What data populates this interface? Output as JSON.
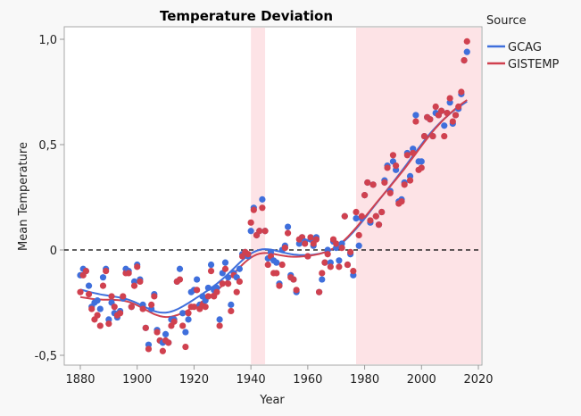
{
  "chart_data": {
    "type": "scatter",
    "title": "Temperature Deviation",
    "xlabel": "Year",
    "ylabel": "Mean Temperature",
    "xlim": [
      1874,
      2021
    ],
    "ylim": [
      -0.55,
      1.07
    ],
    "xticks": [
      1880,
      1900,
      1920,
      1940,
      1960,
      1980,
      2000,
      2020
    ],
    "xtick_labels": [
      "1880",
      "1900",
      "1920",
      "1940",
      "1960",
      "1980",
      "2000",
      "2020"
    ],
    "yticks": [
      -0.5,
      0,
      0.5,
      1.0
    ],
    "ytick_labels": [
      "-0,5",
      "0",
      "0,5",
      "1,0"
    ],
    "reference_line": {
      "y": 0,
      "style": "dashed"
    },
    "shaded_ranges": [
      [
        1940,
        1945
      ],
      [
        1977,
        2021
      ]
    ],
    "shade_color": "#fde3e6",
    "legend": {
      "title": "Source",
      "placement": "right"
    },
    "smoother": true,
    "x_start": 1880,
    "series": [
      {
        "name": "GCAG",
        "color": "#3f6fdc",
        "values": [
          -0.12,
          -0.09,
          -0.1,
          -0.17,
          -0.27,
          -0.25,
          -0.24,
          -0.28,
          -0.13,
          -0.09,
          -0.33,
          -0.25,
          -0.3,
          -0.32,
          -0.29,
          -0.23,
          -0.09,
          -0.1,
          -0.27,
          -0.15,
          -0.07,
          -0.14,
          -0.26,
          -0.37,
          -0.45,
          -0.28,
          -0.21,
          -0.38,
          -0.43,
          -0.44,
          -0.4,
          -0.44,
          -0.33,
          -0.33,
          -0.15,
          -0.09,
          -0.3,
          -0.39,
          -0.33,
          -0.2,
          -0.19,
          -0.14,
          -0.26,
          -0.22,
          -0.24,
          -0.18,
          -0.07,
          -0.19,
          -0.18,
          -0.33,
          -0.11,
          -0.06,
          -0.13,
          -0.26,
          -0.11,
          -0.13,
          -0.09,
          -0.02,
          -0.01,
          -0.03,
          0.09,
          0.2,
          0.07,
          0.09,
          0.24,
          0.09,
          -0.04,
          -0.01,
          -0.05,
          -0.06,
          -0.16,
          0.0,
          0.02,
          0.11,
          -0.12,
          -0.14,
          -0.2,
          0.03,
          0.06,
          0.04,
          -0.03,
          0.05,
          0.02,
          0.06,
          -0.2,
          -0.14,
          -0.06,
          0.0,
          -0.06,
          0.04,
          0.01,
          -0.05,
          0.03,
          0.16,
          -0.07,
          -0.02,
          -0.12,
          0.15,
          0.02,
          0.15,
          0.26,
          0.32,
          0.13,
          0.31,
          0.16,
          0.12,
          0.18,
          0.33,
          0.4,
          0.28,
          0.42,
          0.38,
          0.23,
          0.24,
          0.32,
          0.46,
          0.35,
          0.48,
          0.64,
          0.42,
          0.42,
          0.54,
          0.63,
          0.62,
          0.54,
          0.65,
          0.64,
          0.66,
          0.59,
          0.65,
          0.7,
          0.6,
          0.64,
          0.67,
          0.74,
          0.9,
          0.94
        ]
      },
      {
        "name": "GISTEMP",
        "color": "#d0414f",
        "values": [
          -0.2,
          -0.12,
          -0.1,
          -0.21,
          -0.28,
          -0.33,
          -0.31,
          -0.36,
          -0.17,
          -0.1,
          -0.35,
          -0.22,
          -0.27,
          -0.31,
          -0.3,
          -0.22,
          -0.11,
          -0.11,
          -0.27,
          -0.17,
          -0.08,
          -0.15,
          -0.28,
          -0.37,
          -0.47,
          -0.26,
          -0.22,
          -0.39,
          -0.43,
          -0.48,
          -0.43,
          -0.44,
          -0.36,
          -0.34,
          -0.15,
          -0.14,
          -0.36,
          -0.46,
          -0.3,
          -0.27,
          -0.27,
          -0.19,
          -0.28,
          -0.26,
          -0.27,
          -0.22,
          -0.1,
          -0.22,
          -0.2,
          -0.36,
          -0.16,
          -0.09,
          -0.16,
          -0.29,
          -0.12,
          -0.2,
          -0.15,
          -0.03,
          -0.01,
          -0.02,
          0.13,
          0.19,
          0.07,
          0.09,
          0.2,
          0.09,
          -0.07,
          -0.03,
          -0.11,
          -0.11,
          -0.17,
          -0.07,
          0.01,
          0.08,
          -0.13,
          -0.14,
          -0.19,
          0.05,
          0.06,
          0.03,
          -0.03,
          0.06,
          0.03,
          0.05,
          -0.2,
          -0.11,
          -0.06,
          -0.02,
          -0.08,
          0.05,
          0.03,
          -0.08,
          0.01,
          0.16,
          -0.07,
          -0.01,
          -0.1,
          0.18,
          0.07,
          0.16,
          0.26,
          0.32,
          0.14,
          0.31,
          0.16,
          0.12,
          0.18,
          0.32,
          0.39,
          0.27,
          0.45,
          0.4,
          0.22,
          0.23,
          0.31,
          0.45,
          0.33,
          0.46,
          0.61,
          0.38,
          0.39,
          0.54,
          0.63,
          0.62,
          0.54,
          0.68,
          0.64,
          0.66,
          0.54,
          0.65,
          0.72,
          0.61,
          0.64,
          0.68,
          0.75,
          0.9,
          0.99
        ]
      }
    ]
  }
}
